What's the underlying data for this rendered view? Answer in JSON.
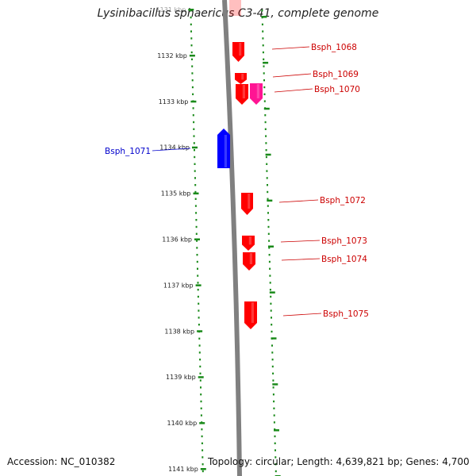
{
  "title": "Lysinibacillus sphaericus C3-41, complete genome",
  "footer": {
    "accession": "Accession: NC_010382",
    "topology": "Topology: circular; Length: 4,639,821 bp; Genes: 4,700"
  },
  "scale_labels": [
    "1131 kbp",
    "1132 kbp",
    "1133 kbp",
    "1134 kbp",
    "1135 kbp",
    "1136 kbp",
    "1137 kbp",
    "1138 kbp",
    "1139 kbp",
    "1140 kbp",
    "1141 kbp"
  ],
  "genes": [
    {
      "label": "Bsph_1068",
      "strand": "+",
      "color": "#ff0000"
    },
    {
      "label": "Bsph_1069",
      "strand": "+",
      "color": "#ff0000"
    },
    {
      "label": "Bsph_1070",
      "strand": "+",
      "color": "#ff0000"
    },
    {
      "label": "",
      "strand": "+",
      "color": "#ff1493"
    },
    {
      "label": "Bsph_1071",
      "strand": "-",
      "color": "#0000ff"
    },
    {
      "label": "Bsph_1072",
      "strand": "+",
      "color": "#ff0000"
    },
    {
      "label": "Bsph_1073",
      "strand": "+",
      "color": "#ff0000"
    },
    {
      "label": "Bsph_1074",
      "strand": "+",
      "color": "#ff0000"
    },
    {
      "label": "Bsph_1075",
      "strand": "+",
      "color": "#ff0000"
    }
  ],
  "colors": {
    "backbone": "#808080",
    "ruler": "#1a8a1a",
    "forward_gene": "#ff0000",
    "reverse_gene": "#0000ff",
    "label_forward": "#cc0000",
    "label_reverse": "#0000cc"
  }
}
